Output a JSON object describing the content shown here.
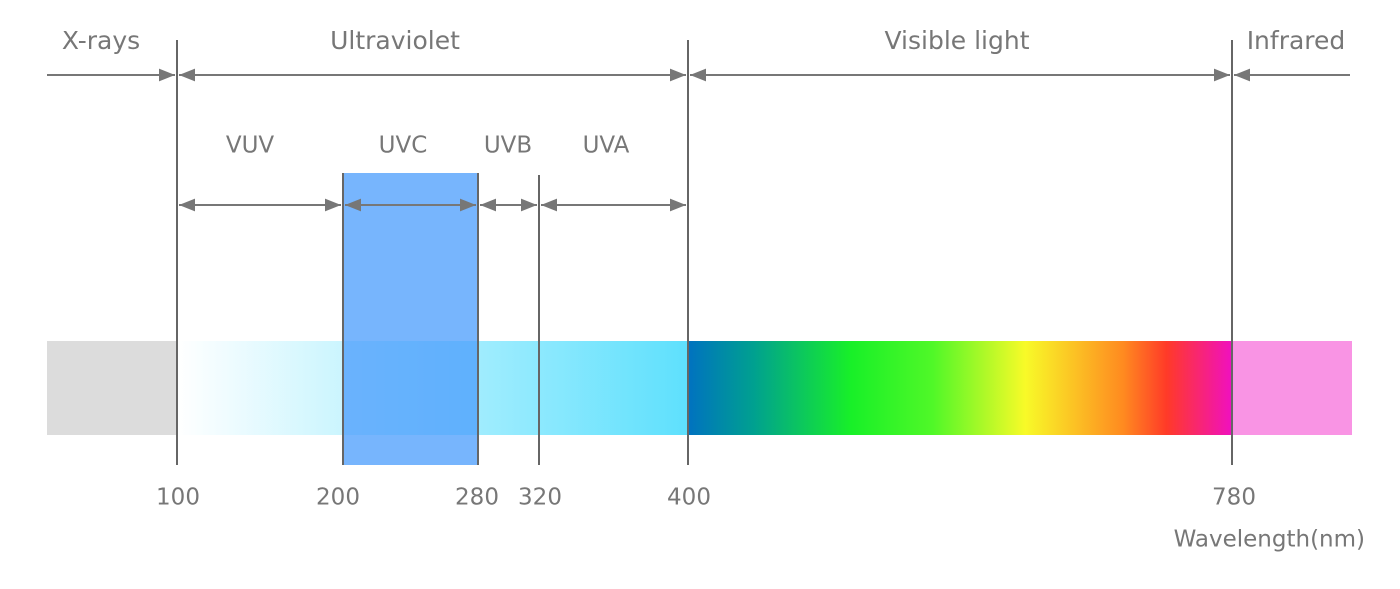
{
  "bands": [
    "X-rays",
    "Ultraviolet",
    "Visible light",
    "Infrared"
  ],
  "sub_bands": [
    "VUV",
    "UVC",
    "UVB",
    "UVA"
  ],
  "ticks": [
    "100",
    "200",
    "280",
    "320",
    "400",
    "780"
  ],
  "axis_label": "Wavelength(nm)"
}
